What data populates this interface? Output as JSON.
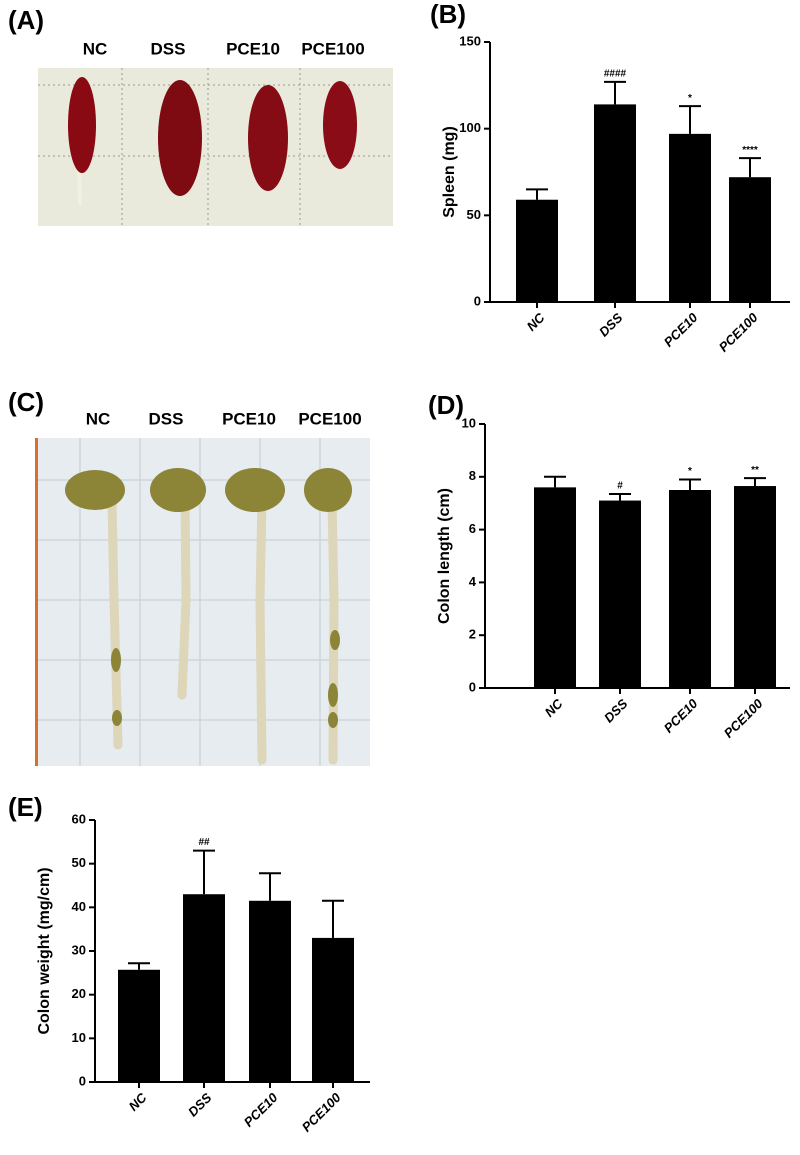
{
  "photos": [
    {
      "panel_label": "(A)",
      "columns": [
        "NC",
        "DSS",
        "PCE10",
        "PCE100"
      ]
    },
    {
      "panel_label": "(C)",
      "columns": [
        "NC",
        "DSS",
        "PCE10",
        "PCE100"
      ]
    }
  ],
  "chart_data": [
    {
      "type": "bar",
      "panel_label": "(B)",
      "y_label": "Spleen (mg)",
      "categories": [
        "NC",
        "DSS",
        "PCE10",
        "PCE100"
      ],
      "values": [
        59,
        114,
        97,
        72
      ],
      "errors": [
        6,
        13,
        16,
        11
      ],
      "significance": [
        null,
        "####",
        "*",
        "****"
      ],
      "color": "#000000",
      "ylim": [
        0,
        150
      ],
      "yticks": [
        0,
        50,
        100,
        150
      ]
    },
    {
      "type": "bar",
      "panel_label": "(D)",
      "y_label": "Colon length (cm)",
      "categories": [
        "NC",
        "DSS",
        "PCE10",
        "PCE100"
      ],
      "values": [
        7.6,
        7.1,
        7.5,
        7.65
      ],
      "errors": [
        0.4,
        0.25,
        0.4,
        0.3
      ],
      "significance": [
        null,
        "#",
        "*",
        "**"
      ],
      "color": "#000000",
      "ylim": [
        0,
        10
      ],
      "yticks": [
        0,
        2,
        4,
        6,
        8,
        10
      ]
    },
    {
      "type": "bar",
      "panel_label": "(E)",
      "y_label": "Colon weight (mg/cm)",
      "categories": [
        "NC",
        "DSS",
        "PCE10",
        "PCE100"
      ],
      "values": [
        25.7,
        43,
        41.5,
        33
      ],
      "errors": [
        1.5,
        10,
        6.3,
        8.5
      ],
      "significance": [
        null,
        "##",
        null,
        null
      ],
      "color": "#000000",
      "ylim": [
        0,
        60
      ],
      "yticks": [
        0,
        10,
        20,
        30,
        40,
        50,
        60
      ]
    }
  ]
}
